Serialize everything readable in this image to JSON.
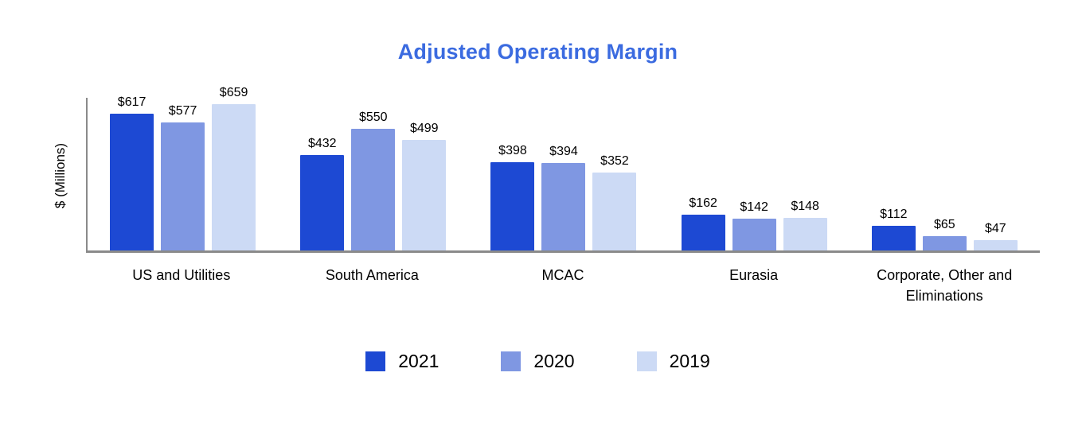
{
  "title": "Adjusted Operating Margin",
  "ylabel": "$ (Millions)",
  "value_prefix": "$",
  "colors": {
    "title": "#3b6be0",
    "axis": "#8a8a8a",
    "series_2021": "#1d49d3",
    "series_2020": "#7f97e2",
    "series_2019": "#ccdaf5"
  },
  "chart_data": {
    "type": "bar",
    "title": "Adjusted Operating Margin",
    "xlabel": "",
    "ylabel": "$ (Millions)",
    "ylim": [
      0,
      700
    ],
    "grid": false,
    "legend_position": "bottom",
    "categories": [
      "US and Utilities",
      "South America",
      "MCAC",
      "Eurasia",
      "Corporate, Other and Eliminations"
    ],
    "series": [
      {
        "name": "2021",
        "color": "#1d49d3",
        "values": [
          617,
          432,
          398,
          162,
          112
        ]
      },
      {
        "name": "2020",
        "color": "#7f97e2",
        "values": [
          577,
          550,
          394,
          142,
          65
        ]
      },
      {
        "name": "2019",
        "color": "#ccdaf5",
        "values": [
          659,
          499,
          352,
          148,
          47
        ]
      }
    ]
  }
}
